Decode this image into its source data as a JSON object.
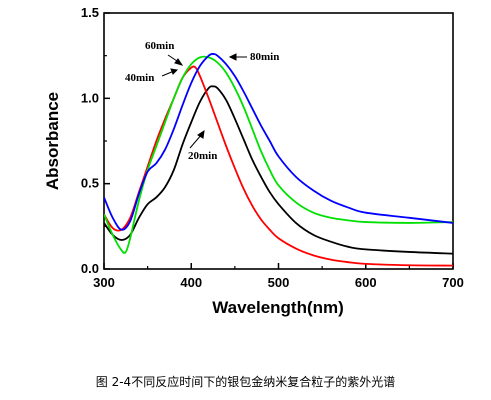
{
  "figure_caption": "图 2-4不同反应时间下的银包金纳米复合粒子的紫外光谱",
  "chart_data": {
    "type": "line",
    "xlabel": "Wavelength(nm)",
    "ylabel": "Absorbance",
    "xlim": [
      300,
      700
    ],
    "ylim": [
      0.0,
      1.5
    ],
    "x_ticks": [
      "300",
      "400",
      "500",
      "600",
      "700"
    ],
    "y_ticks": [
      "0.0",
      "0.5",
      "1.0",
      "1.5"
    ],
    "grid": false,
    "series": [
      {
        "name": "20min",
        "color": "#000000",
        "points": [
          [
            300,
            0.27
          ],
          [
            310,
            0.2
          ],
          [
            320,
            0.17
          ],
          [
            330,
            0.2
          ],
          [
            340,
            0.3
          ],
          [
            350,
            0.38
          ],
          [
            360,
            0.42
          ],
          [
            370,
            0.48
          ],
          [
            380,
            0.58
          ],
          [
            390,
            0.73
          ],
          [
            400,
            0.86
          ],
          [
            410,
            0.98
          ],
          [
            420,
            1.06
          ],
          [
            425,
            1.07
          ],
          [
            430,
            1.06
          ],
          [
            440,
            0.99
          ],
          [
            450,
            0.88
          ],
          [
            460,
            0.76
          ],
          [
            470,
            0.64
          ],
          [
            480,
            0.54
          ],
          [
            490,
            0.45
          ],
          [
            500,
            0.38
          ],
          [
            520,
            0.27
          ],
          [
            540,
            0.2
          ],
          [
            560,
            0.16
          ],
          [
            580,
            0.13
          ],
          [
            600,
            0.115
          ],
          [
            650,
            0.1
          ],
          [
            700,
            0.09
          ]
        ]
      },
      {
        "name": "40min",
        "color": "#ff0000",
        "points": [
          [
            300,
            0.32
          ],
          [
            310,
            0.24
          ],
          [
            320,
            0.23
          ],
          [
            330,
            0.3
          ],
          [
            340,
            0.45
          ],
          [
            350,
            0.6
          ],
          [
            360,
            0.75
          ],
          [
            370,
            0.88
          ],
          [
            380,
            1.0
          ],
          [
            390,
            1.12
          ],
          [
            400,
            1.18
          ],
          [
            405,
            1.18
          ],
          [
            410,
            1.13
          ],
          [
            420,
            1.0
          ],
          [
            430,
            0.86
          ],
          [
            440,
            0.72
          ],
          [
            450,
            0.59
          ],
          [
            460,
            0.47
          ],
          [
            470,
            0.37
          ],
          [
            480,
            0.29
          ],
          [
            490,
            0.23
          ],
          [
            500,
            0.18
          ],
          [
            520,
            0.12
          ],
          [
            540,
            0.08
          ],
          [
            560,
            0.055
          ],
          [
            580,
            0.04
          ],
          [
            600,
            0.03
          ],
          [
            650,
            0.022
          ],
          [
            700,
            0.02
          ]
        ]
      },
      {
        "name": "60min",
        "color": "#00e000",
        "points": [
          [
            300,
            0.32
          ],
          [
            310,
            0.2
          ],
          [
            320,
            0.11
          ],
          [
            325,
            0.1
          ],
          [
            330,
            0.18
          ],
          [
            340,
            0.4
          ],
          [
            350,
            0.58
          ],
          [
            360,
            0.72
          ],
          [
            370,
            0.86
          ],
          [
            380,
            1.0
          ],
          [
            390,
            1.12
          ],
          [
            400,
            1.2
          ],
          [
            410,
            1.24
          ],
          [
            420,
            1.24
          ],
          [
            430,
            1.21
          ],
          [
            440,
            1.15
          ],
          [
            450,
            1.06
          ],
          [
            460,
            0.95
          ],
          [
            470,
            0.82
          ],
          [
            480,
            0.69
          ],
          [
            490,
            0.58
          ],
          [
            500,
            0.49
          ],
          [
            520,
            0.39
          ],
          [
            540,
            0.33
          ],
          [
            560,
            0.3
          ],
          [
            580,
            0.285
          ],
          [
            600,
            0.275
          ],
          [
            650,
            0.27
          ],
          [
            700,
            0.275
          ]
        ]
      },
      {
        "name": "80min",
        "color": "#0000ff",
        "points": [
          [
            300,
            0.42
          ],
          [
            310,
            0.3
          ],
          [
            320,
            0.23
          ],
          [
            330,
            0.28
          ],
          [
            340,
            0.44
          ],
          [
            350,
            0.57
          ],
          [
            360,
            0.62
          ],
          [
            370,
            0.7
          ],
          [
            380,
            0.82
          ],
          [
            390,
            0.96
          ],
          [
            400,
            1.09
          ],
          [
            410,
            1.19
          ],
          [
            420,
            1.25
          ],
          [
            425,
            1.26
          ],
          [
            430,
            1.25
          ],
          [
            440,
            1.2
          ],
          [
            450,
            1.13
          ],
          [
            460,
            1.04
          ],
          [
            470,
            0.94
          ],
          [
            480,
            0.84
          ],
          [
            490,
            0.75
          ],
          [
            500,
            0.66
          ],
          [
            520,
            0.54
          ],
          [
            540,
            0.46
          ],
          [
            560,
            0.4
          ],
          [
            580,
            0.36
          ],
          [
            600,
            0.33
          ],
          [
            650,
            0.3
          ],
          [
            700,
            0.27
          ]
        ]
      }
    ]
  }
}
